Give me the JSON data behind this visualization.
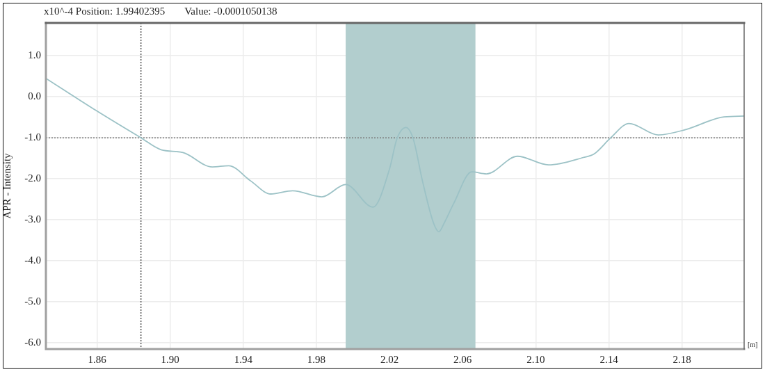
{
  "chart_data": {
    "type": "line",
    "annotations": [
      "x10^-4 Position: 1.99402395",
      "Value: -0.0001050138"
    ],
    "xlabel": "[m]",
    "ylabel": "APR - Intensity",
    "series": [
      {
        "color": "#9cc2c6",
        "x": [
          1.832,
          1.86,
          1.884,
          1.895,
          1.907,
          1.923,
          1.932,
          1.944,
          1.955,
          1.967,
          1.983,
          1.996,
          2.011,
          2.02,
          2.024,
          2.029,
          2.033,
          2.038,
          2.044,
          2.047,
          2.05,
          2.055,
          2.065,
          2.073,
          2.09,
          2.107,
          2.126,
          2.132,
          2.141,
          2.151,
          2.167,
          2.182,
          2.203,
          2.214
        ],
        "values": [
          0.45,
          -0.35,
          -1.0,
          -1.29,
          -1.36,
          -1.71,
          -1.68,
          -2.05,
          -2.37,
          -2.29,
          -2.44,
          -2.14,
          -2.69,
          -1.76,
          -1.03,
          -0.75,
          -1.03,
          -2.05,
          -3.07,
          -3.29,
          -3.07,
          -2.61,
          -1.83,
          -1.88,
          -1.45,
          -1.66,
          -1.48,
          -1.39,
          -1.0,
          -0.65,
          -0.93,
          -0.8,
          -0.49,
          -0.47
        ]
      }
    ],
    "xlim": [
      1.832,
      2.214
    ],
    "xticks": [
      1.86,
      {
        "value": 1.9,
        "label": "1.90"
      },
      1.94,
      1.98,
      2.02,
      2.06,
      {
        "value": 2.1,
        "label": "2.10"
      },
      2.14,
      2.18
    ],
    "ylim": [
      -6.15,
      1.8
    ],
    "yticks": [
      {
        "value": -6,
        "label": "-6.0"
      },
      {
        "value": -5,
        "label": "-5.0"
      },
      {
        "value": -4,
        "label": "-4.0"
      },
      {
        "value": -3,
        "label": "-3.0"
      },
      {
        "value": -2,
        "label": "-2.0"
      },
      {
        "value": -1,
        "label": "-1.0"
      },
      {
        "value": 0,
        "label": "0.0"
      },
      {
        "value": 1,
        "label": "1.0"
      }
    ],
    "bands": [
      {
        "axis": "x",
        "from": 1.996,
        "to": 2.067,
        "color": "#b2cece"
      }
    ],
    "ref_lines": [
      {
        "axis": "x",
        "value": 1.884,
        "color": "#555555",
        "line_style": "dotted"
      },
      {
        "axis": "y",
        "value": -1.0,
        "color": "#777777",
        "line_style": "dotted"
      }
    ],
    "grid": true,
    "marker": "none",
    "line_style": "solid"
  }
}
